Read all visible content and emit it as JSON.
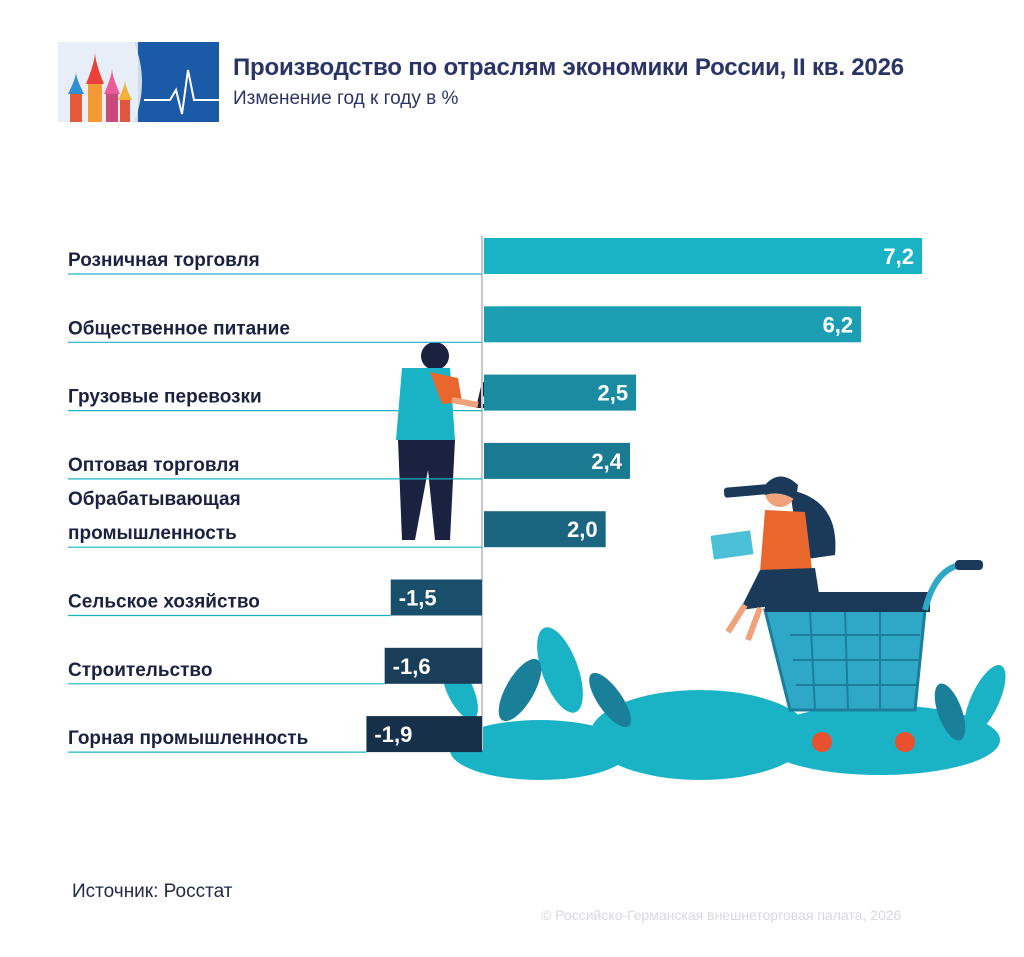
{
  "header": {
    "title": "Производство по отраслям экономики России, II кв. 2026",
    "subtitle": "Изменение год к году в %"
  },
  "chart_data": {
    "type": "bar",
    "orientation": "horizontal",
    "categories": [
      "Розничная торговля",
      "Общественное питание",
      "Грузовые перевозки",
      "Оптовая торговля",
      "Обрабатывающая промышленность",
      "Сельское хозяйство",
      "Строительство",
      "Горная промышленность"
    ],
    "category_lines": [
      [
        "Розничная торговля"
      ],
      [
        "Общественное питание"
      ],
      [
        "Грузовые перевозки"
      ],
      [
        "Оптовая торговля"
      ],
      [
        "Обрабатывающая",
        "промышленность"
      ],
      [
        "Сельское хозяйство"
      ],
      [
        "Строительство"
      ],
      [
        "Горная промышленность"
      ]
    ],
    "values": [
      7.2,
      6.2,
      2.5,
      2.4,
      2.0,
      -1.5,
      -1.6,
      -1.9
    ],
    "value_labels": [
      "7,2",
      "6,2",
      "2,5",
      "2,4",
      "2,0",
      "-1,5",
      "-1,6",
      "-1,9"
    ],
    "bar_colors": [
      "#1ab3c6",
      "#1c9fb3",
      "#1b8ba2",
      "#197a91",
      "#1a6680",
      "#1a4f6b",
      "#1a3d5a",
      "#16304a"
    ],
    "xlim": [
      -2,
      7.3
    ],
    "grid": false,
    "legend": "none"
  },
  "footer": {
    "source": "Источник: Росстат",
    "copyright": "© Российско-Германская внешнеторговая палата, 2026"
  },
  "illustration": {
    "logo": "moscow-domes-pulse-logo",
    "figures": [
      "man-with-laptop-icon",
      "woman-with-spyglass-icon",
      "shopping-cart-icon",
      "leaves-icon"
    ]
  }
}
